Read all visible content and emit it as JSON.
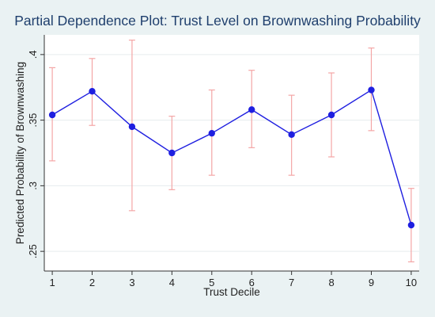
{
  "chart_data": {
    "type": "line",
    "title": "Partial Dependence Plot: Trust Level on Brownwashing Probability",
    "xlabel": "Trust Decile",
    "ylabel": "Predicted Probability of Brownwashing",
    "x": [
      1,
      2,
      3,
      4,
      5,
      6,
      7,
      8,
      9,
      10
    ],
    "y": [
      0.354,
      0.372,
      0.345,
      0.325,
      0.34,
      0.358,
      0.339,
      0.354,
      0.373,
      0.27
    ],
    "ci_lower": [
      0.319,
      0.346,
      0.281,
      0.297,
      0.308,
      0.329,
      0.308,
      0.322,
      0.342,
      0.242
    ],
    "ci_upper": [
      0.39,
      0.397,
      0.411,
      0.353,
      0.373,
      0.388,
      0.369,
      0.386,
      0.405,
      0.298
    ],
    "xlim": [
      0.8,
      10.2
    ],
    "ylim": [
      0.235,
      0.415
    ],
    "xticks": [
      1,
      2,
      3,
      4,
      5,
      6,
      7,
      8,
      9,
      10
    ],
    "yticks": [
      0.25,
      0.3,
      0.35,
      0.4
    ],
    "ytick_labels": [
      ".25",
      ".3",
      ".35",
      ".4"
    ],
    "grid": "horizontal",
    "colors": {
      "line": "#1f1fe0",
      "markers": "#1f1fe0",
      "ci_bars": "#f4a6a6",
      "grid": "#e6ecee",
      "background": "#eaf2f3",
      "plot_area": "#ffffff",
      "title": "#1f3f6d"
    }
  }
}
